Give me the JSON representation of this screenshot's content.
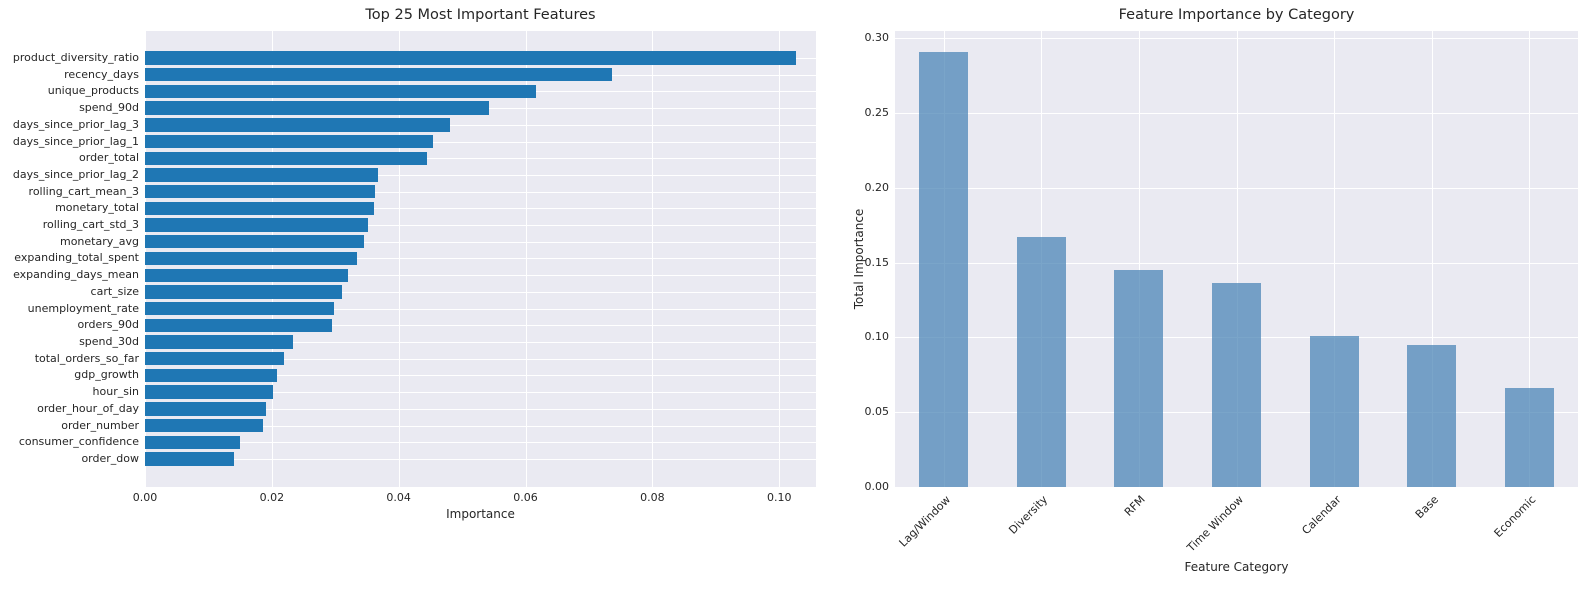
{
  "figure": {
    "background": "#ffffff",
    "axes_background": "#eaeaf2",
    "grid_color": "#ffffff",
    "text_color": "#262626"
  },
  "chart_data": [
    {
      "type": "bar",
      "orientation": "horizontal",
      "title": "Top 25 Most Important Features",
      "xlabel": "Importance",
      "ylabel": "",
      "grid": true,
      "legend": false,
      "bar_color": "#1f77b4",
      "xlim": [
        0,
        0.1058
      ],
      "xticks": [
        0.0,
        0.02,
        0.04,
        0.06,
        0.08,
        0.1
      ],
      "xtick_labels": [
        "0.00",
        "0.02",
        "0.04",
        "0.06",
        "0.08",
        "0.10"
      ],
      "categories": [
        "product_diversity_ratio",
        "recency_days",
        "unique_products",
        "spend_90d",
        "days_since_prior_lag_3",
        "days_since_prior_lag_1",
        "order_total",
        "days_since_prior_lag_2",
        "rolling_cart_mean_3",
        "monetary_total",
        "rolling_cart_std_3",
        "monetary_avg",
        "expanding_total_spent",
        "expanding_days_mean",
        "cart_size",
        "unemployment_rate",
        "orders_90d",
        "spend_30d",
        "total_orders_so_far",
        "gdp_growth",
        "hour_sin",
        "order_hour_of_day",
        "order_number",
        "consumer_confidence",
        "order_dow"
      ],
      "values": [
        0.1027,
        0.0736,
        0.0616,
        0.0542,
        0.0481,
        0.0454,
        0.0445,
        0.0368,
        0.0363,
        0.0361,
        0.0351,
        0.0346,
        0.0335,
        0.032,
        0.0311,
        0.0298,
        0.0295,
        0.0234,
        0.0219,
        0.0208,
        0.0202,
        0.0191,
        0.0186,
        0.015,
        0.0141
      ]
    },
    {
      "type": "bar",
      "orientation": "vertical",
      "title": "Feature Importance by Category",
      "xlabel": "Feature Category",
      "ylabel": "Total Importance",
      "grid": true,
      "legend": false,
      "bar_color": "rgba(70,130,180,0.72)",
      "ylim": [
        0,
        0.3047
      ],
      "yticks": [
        0.0,
        0.05,
        0.1,
        0.15,
        0.2,
        0.25,
        0.3
      ],
      "ytick_labels": [
        "0.00",
        "0.05",
        "0.10",
        "0.15",
        "0.20",
        "0.25",
        "0.30"
      ],
      "xtick_rotation_deg": 45,
      "categories": [
        "Lag/Window",
        "Diversity",
        "RFM",
        "Time Window",
        "Calendar",
        "Base",
        "Economic"
      ],
      "values": [
        0.291,
        0.167,
        0.145,
        0.136,
        0.101,
        0.095,
        0.066
      ]
    }
  ]
}
